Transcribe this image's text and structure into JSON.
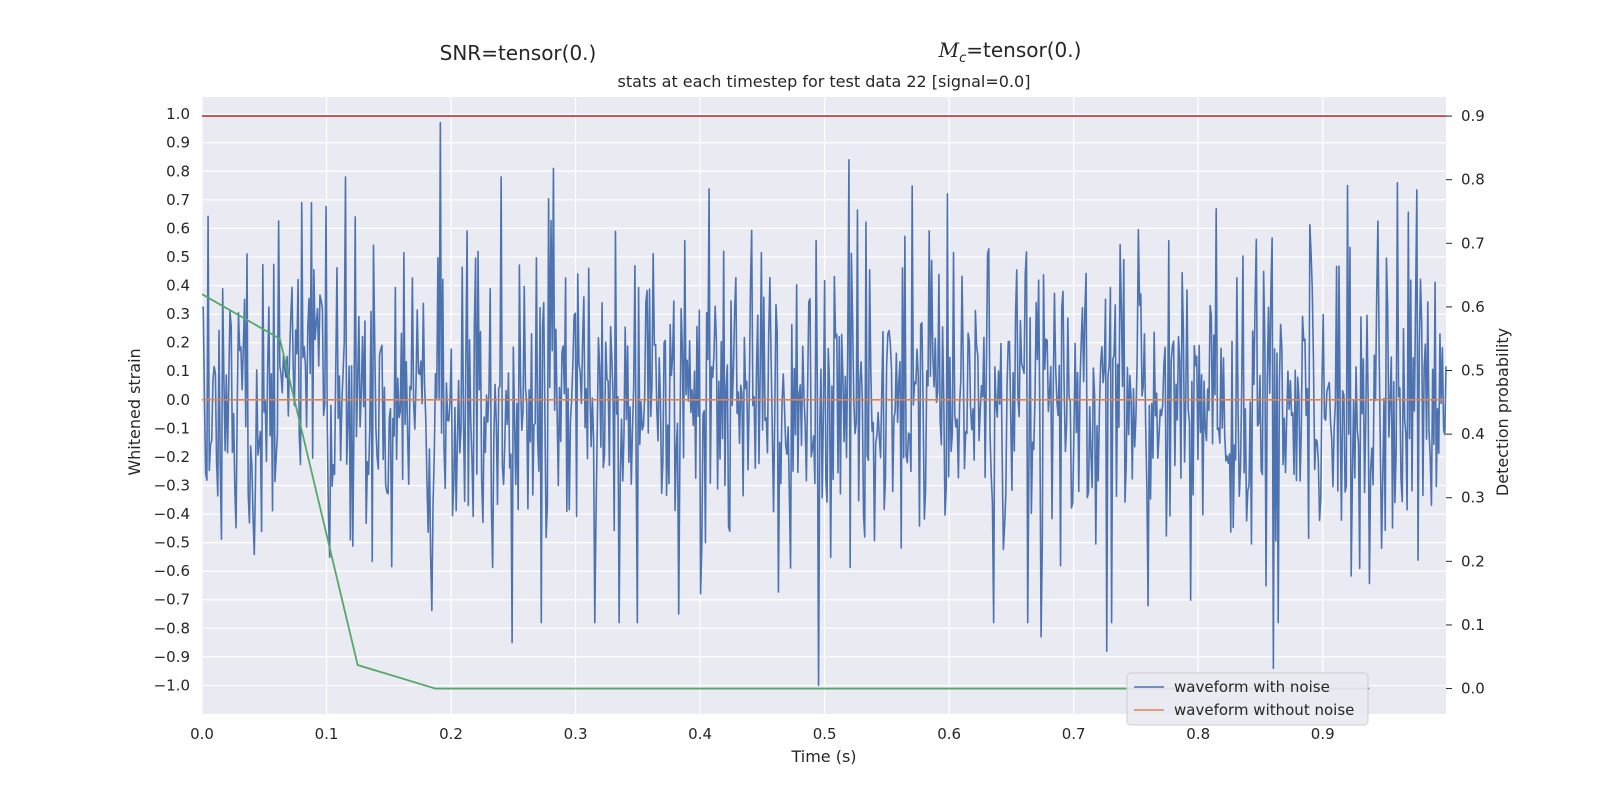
{
  "header": {
    "snr_label": "SNR=tensor(0.)",
    "mc_symbol": "M",
    "mc_subscript": "c",
    "mc_value": "=tensor(0.)"
  },
  "chart_data": {
    "type": "line",
    "title": "stats at each timestep for test data 22 [signal=0.0]",
    "xlabel": "Time (s)",
    "ylabel": "Whitened strain",
    "y2label": "Detection probability",
    "xlim": [
      0.0,
      0.999
    ],
    "ylim": [
      -1.1,
      1.06
    ],
    "y2lim": [
      -0.04,
      0.93
    ],
    "x_ticks": [
      "0.0",
      "0.1",
      "0.2",
      "0.3",
      "0.4",
      "0.5",
      "0.6",
      "0.7",
      "0.8",
      "0.9"
    ],
    "y_ticks": [
      "1.0",
      "0.9",
      "0.8",
      "0.7",
      "0.6",
      "0.5",
      "0.4",
      "0.3",
      "0.2",
      "0.1",
      "0.0",
      "−0.1",
      "−0.2",
      "−0.3",
      "−0.4",
      "−0.5",
      "−0.6",
      "−0.7",
      "−0.8",
      "−0.9",
      "−1.0"
    ],
    "y2_ticks": [
      "0.9",
      "0.8",
      "0.7",
      "0.6",
      "0.5",
      "0.4",
      "0.3",
      "0.2",
      "0.1",
      "0.0"
    ],
    "grid": true,
    "legend_position": "bottom-right",
    "colors": {
      "noisy": "#4c72b0",
      "clean": "#dd8452",
      "probability": "#55a868",
      "threshold": "#c44e52",
      "background": "#eaeaf2",
      "grid": "#ffffff"
    },
    "series": [
      {
        "name": "waveform with noise",
        "n_samples": 1024,
        "fs": 1024,
        "peaks": [
          [
            0.08,
            0.69
          ],
          [
            0.088,
            0.69
          ],
          [
            0.123,
            0.64
          ],
          [
            0.191,
            0.97
          ],
          [
            0.24,
            0.78
          ],
          [
            0.282,
            0.81
          ],
          [
            0.52,
            0.84
          ],
          [
            0.24,
            0.78
          ],
          [
            0.495,
            -1.0
          ],
          [
            0.249,
            -0.85
          ],
          [
            0.86,
            -0.94
          ],
          [
            0.727,
            -0.88
          ],
          [
            0.674,
            -0.83
          ],
          [
            0.383,
            -0.75
          ],
          [
            0.96,
            0.76
          ],
          [
            0.92,
            0.75
          ]
        ]
      },
      {
        "name": "waveform without noise",
        "x": [
          0.0,
          0.999
        ],
        "y": [
          0.0,
          0.0
        ]
      },
      {
        "name": "",
        "axis": "right",
        "x": [
          0.0,
          0.0625,
          0.125,
          0.1875,
          0.25,
          0.3125,
          0.375,
          0.4375,
          0.5,
          0.5625,
          0.625,
          0.6875,
          0.75,
          0.8125,
          0.875,
          0.9375
        ],
        "y": [
          0.62,
          0.55,
          0.037,
          0.0,
          0.0,
          0.0,
          0.0,
          0.0,
          0.0,
          0.0,
          0.0,
          0.0,
          0.0,
          0.0,
          0.0,
          0.0
        ]
      },
      {
        "name": "",
        "axis": "right",
        "x": [
          0.0,
          0.999
        ],
        "y": [
          0.9,
          0.9
        ]
      }
    ]
  }
}
